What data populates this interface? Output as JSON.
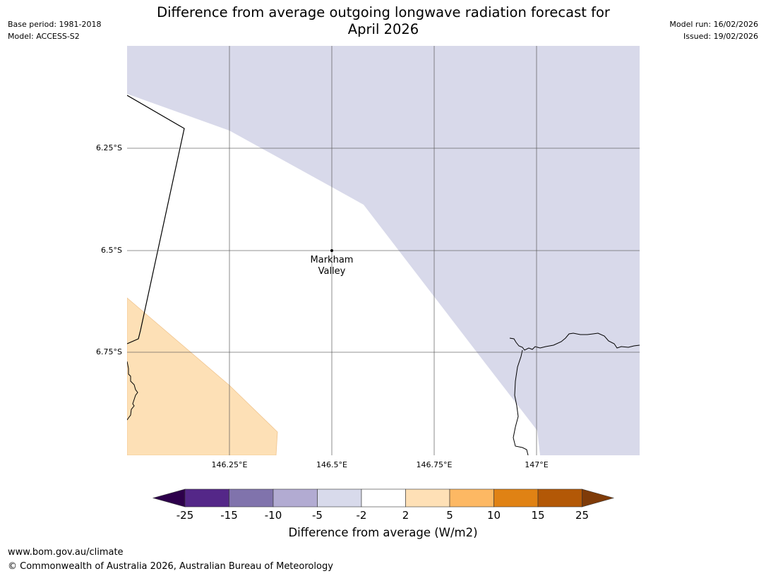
{
  "header": {
    "title_line1": "Difference from average outgoing longwave radiation forecast for",
    "title_line2": "April 2026",
    "base_period": "Base period: 1981-2018",
    "model": "Model: ACCESS-S2",
    "model_run": "Model run: 16/02/2026",
    "issued": "Issued: 19/02/2026"
  },
  "map": {
    "lat_labels": [
      "6.25°S",
      "6.5°S",
      "6.75°S"
    ],
    "lon_labels": [
      "146.25°E",
      "146.5°E",
      "146.75°E",
      "147°E"
    ],
    "location": {
      "name_line1": "Markham",
      "name_line2": "Valley",
      "lon": 146.5,
      "lat": -6.5
    },
    "regions": [
      {
        "name": "negative-anomaly-region",
        "category": "-5 to -2",
        "color": "#d8d9ea"
      },
      {
        "name": "positive-anomaly-region",
        "category": "2 to 5",
        "color": "#fde0b6"
      }
    ]
  },
  "colorbar": {
    "title": "Difference from average (W/m2)",
    "ticks": [
      "-25",
      "-15",
      "-10",
      "-5",
      "-2",
      "2",
      "5",
      "10",
      "15",
      "25"
    ],
    "under_color": "#2d004b",
    "over_color": "#7f3b08",
    "colors": [
      "#542788",
      "#8073ac",
      "#b2abd2",
      "#d8daeb",
      "#ffffff",
      "#fee0b6",
      "#fdb863",
      "#e08214",
      "#b35806"
    ]
  },
  "footer": {
    "url": "www.bom.gov.au/climate",
    "copyright": "© Commonwealth of Australia 2026, Australian Bureau of Meteorology"
  }
}
